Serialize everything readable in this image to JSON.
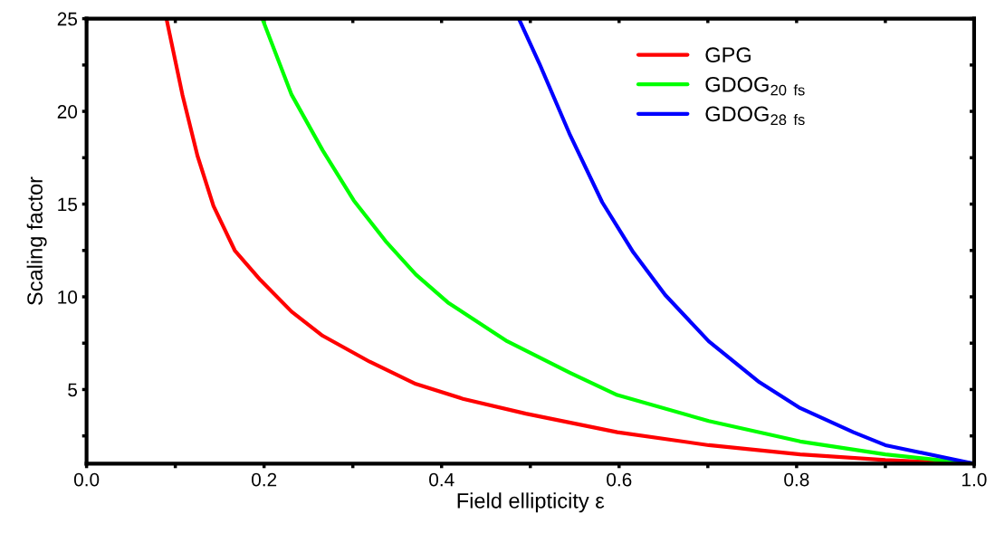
{
  "chart_data": {
    "type": "line",
    "xlabel": "Field ellipticity ε",
    "ylabel": "Scaling factor",
    "xlim": [
      0,
      1
    ],
    "ylim": [
      1,
      25
    ],
    "xticks": [
      {
        "value": 0,
        "label": "0.0"
      },
      {
        "value": 0.1,
        "label": null
      },
      {
        "value": 0.2,
        "label": "0.2"
      },
      {
        "value": 0.3,
        "label": null
      },
      {
        "value": 0.4,
        "label": "0.4"
      },
      {
        "value": 0.5,
        "label": null
      },
      {
        "value": 0.6,
        "label": "0.6"
      },
      {
        "value": 0.7,
        "label": null
      },
      {
        "value": 0.8,
        "label": "0.8"
      },
      {
        "value": 0.9,
        "label": null
      },
      {
        "value": 1,
        "label": "1.0"
      }
    ],
    "yticks": [
      {
        "value": 2.5,
        "label": null
      },
      5,
      {
        "value": 7.5,
        "label": null
      },
      10,
      {
        "value": 12.5,
        "label": null
      },
      15,
      {
        "value": 17.5,
        "label": null
      },
      20,
      {
        "value": 22.5,
        "label": null
      },
      25
    ],
    "legend": "top right",
    "grid": false,
    "marker": "none",
    "line_style": "solid",
    "series": [
      {
        "name": "GPG",
        "color": "#ff0000",
        "x": [
          0.09,
          0.108,
          0.125,
          0.143,
          0.167,
          0.196,
          0.231,
          0.266,
          0.319,
          0.371,
          0.424,
          0.495,
          0.598,
          0.701,
          0.804,
          0.9,
          1.0
        ],
        "values": [
          25,
          20.9,
          17.6,
          14.9,
          12.5,
          10.9,
          9.2,
          7.9,
          6.5,
          5.3,
          4.5,
          3.7,
          2.7,
          2.0,
          1.5,
          1.2,
          1
        ]
      },
      {
        "name": "GDOG$_{20 fs}$",
        "color": "#00ff00",
        "x": [
          0.198,
          0.231,
          0.266,
          0.301,
          0.337,
          0.371,
          0.407,
          0.474,
          0.545,
          0.598,
          0.701,
          0.804,
          0.9,
          1.0
        ],
        "values": [
          25,
          20.9,
          17.9,
          15.2,
          13.0,
          11.2,
          9.7,
          7.6,
          5.9,
          4.7,
          3.3,
          2.2,
          1.5,
          1
        ]
      },
      {
        "name": "GDOG$_{28 fs}$",
        "color": "#0000ff",
        "x": [
          0.487,
          0.51,
          0.545,
          0.581,
          0.616,
          0.652,
          0.701,
          0.758,
          0.804,
          0.864,
          0.9,
          1.0
        ],
        "values": [
          25,
          22.6,
          18.7,
          15.1,
          12.4,
          10.1,
          7.6,
          5.4,
          4.0,
          2.7,
          2.0,
          1
        ]
      }
    ]
  }
}
